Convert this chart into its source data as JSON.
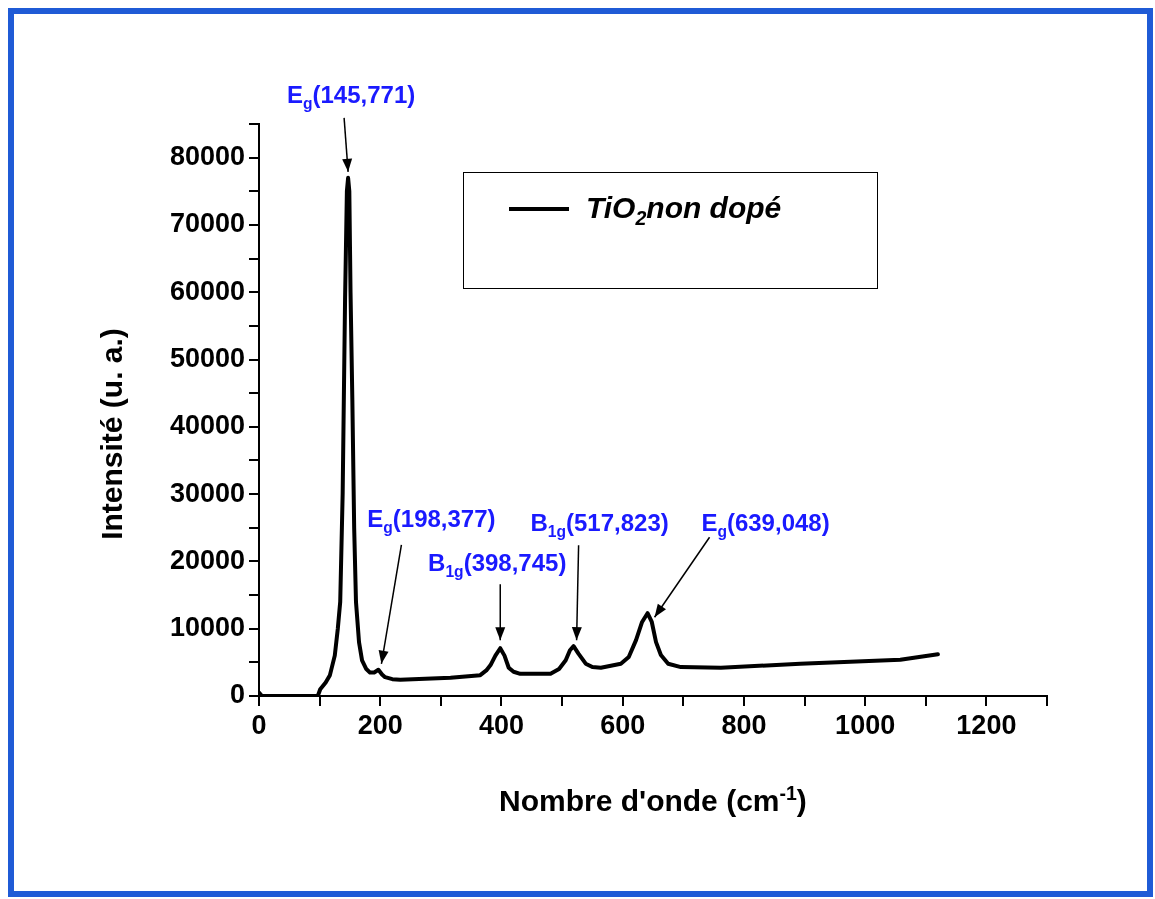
{
  "chart_data": {
    "type": "line",
    "xlabel": "Nombre d'onde (cm$^{-1}$)",
    "ylabel": "Intensité (u. a.)",
    "xlim": [
      0,
      1300
    ],
    "xticks": [
      0,
      {
        "value": 100,
        "label": null
      },
      200,
      {
        "value": 300,
        "label": null
      },
      400,
      {
        "value": 500,
        "label": null
      },
      600,
      {
        "value": 700,
        "label": null
      },
      800,
      {
        "value": 900,
        "label": null
      },
      1000,
      {
        "value": 1100,
        "label": null
      },
      1200,
      {
        "value": 1300,
        "label": null
      }
    ],
    "ylim": [
      0,
      85000
    ],
    "yticks": [
      0,
      {
        "value": 5000,
        "label": null
      },
      10000,
      {
        "value": 15000,
        "label": null
      },
      20000,
      {
        "value": 25000,
        "label": null
      },
      30000,
      {
        "value": 35000,
        "label": null
      },
      40000,
      {
        "value": 45000,
        "label": null
      },
      50000,
      {
        "value": 55000,
        "label": null
      },
      60000,
      {
        "value": 65000,
        "label": null
      },
      70000,
      {
        "value": 75000,
        "label": null
      },
      80000,
      {
        "value": 85000,
        "label": null
      }
    ],
    "x": [
      0,
      5,
      10,
      97,
      101,
      110,
      117,
      125,
      130,
      134,
      138,
      142,
      145,
      147,
      149,
      151,
      154,
      157,
      160,
      165,
      170,
      177,
      183,
      190,
      197,
      203,
      208,
      220,
      233,
      316,
      365,
      375,
      382,
      390,
      398,
      405,
      412,
      420,
      431,
      481,
      495,
      506,
      513,
      519,
      527,
      539,
      550,
      564,
      597,
      610,
      622,
      632,
      641,
      648,
      655,
      663,
      675,
      696,
      762,
      893,
      1058,
      1120
    ],
    "series": [
      {
        "name": "TiO$_{2}$non dopé",
        "color": "#000000",
        "values": [
          500,
          0,
          0,
          0,
          1000,
          2000,
          3100,
          6000,
          10000,
          14000,
          30000,
          59000,
          75000,
          77000,
          75000,
          60000,
          44000,
          25000,
          14000,
          8000,
          5300,
          4000,
          3500,
          3500,
          3900,
          3200,
          2800,
          2500,
          2400,
          2700,
          3100,
          3800,
          4600,
          6000,
          7100,
          6000,
          4200,
          3600,
          3300,
          3300,
          4000,
          5300,
          6800,
          7400,
          6300,
          4800,
          4300,
          4200,
          4800,
          5800,
          8300,
          11000,
          12300,
          11000,
          8000,
          6100,
          4800,
          4300,
          4200,
          4800,
          5400,
          6200
        ]
      }
    ],
    "annotations": [
      {
        "text": "E$_{g}$(145,771)",
        "x": 147,
        "y": 77000
      },
      {
        "text": "E$_{g}$(198,377)",
        "x": 197,
        "y": 3900
      },
      {
        "text": "B$_{1g}$(398,745)",
        "x": 398,
        "y": 7100
      },
      {
        "text": "B$_{1g}$(517,823)",
        "x": 519,
        "y": 7400
      },
      {
        "text": "E$_{g}$(639,048)",
        "x": 641,
        "y": 12300
      }
    ],
    "grid": false,
    "legend": "top right",
    "marker": "none",
    "line_style": "solid"
  }
}
